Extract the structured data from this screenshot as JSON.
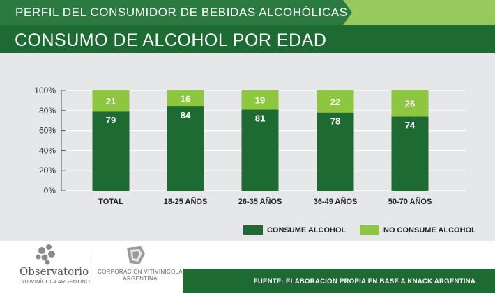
{
  "header": {
    "supertitle": "PERFIL DEL CONSUMIDOR DE BEBIDAS ALCOHÓLICAS",
    "title": "CONSUMO DE ALCOHOL POR EDAD"
  },
  "colors": {
    "dark_green": "#1d6a33",
    "light_green": "#8dc63f"
  },
  "chart_data": {
    "type": "bar",
    "stacked": true,
    "title": "CONSUMO DE ALCOHOL POR EDAD",
    "categories": [
      "TOTAL",
      "18-25 AÑOS",
      "26-35 AÑOS",
      "36-49 AÑOS",
      "50-70 AÑOS"
    ],
    "series": [
      {
        "name": "CONSUME ALCOHOL",
        "color": "#1d6a33",
        "values": [
          79,
          84,
          81,
          78,
          74
        ]
      },
      {
        "name": "NO CONSUME ALCOHOL",
        "color": "#8dc63f",
        "values": [
          21,
          16,
          19,
          22,
          26
        ]
      }
    ],
    "yticks": [
      "0%",
      "20%",
      "40%",
      "60%",
      "80%",
      "100%"
    ],
    "ylim": [
      0,
      100
    ],
    "xlabel": "",
    "ylabel": "",
    "legend_position": "bottom-right"
  },
  "legend": {
    "consume": "CONSUME ALCOHOL",
    "no_consume": "NO CONSUME ALCOHOL"
  },
  "footer": {
    "source": "FUENTE: ELABORACIÓN PROPIA EN BASE A KNACK ARGENTINA"
  },
  "logos": {
    "observatorio_name": "Observatorio",
    "observatorio_sub": "VITIVINÍCOLA ARGENTINO",
    "corporacion_line1": "CORPORACION VITIVINICOLA",
    "corporacion_line2": "ARGENTINA"
  }
}
